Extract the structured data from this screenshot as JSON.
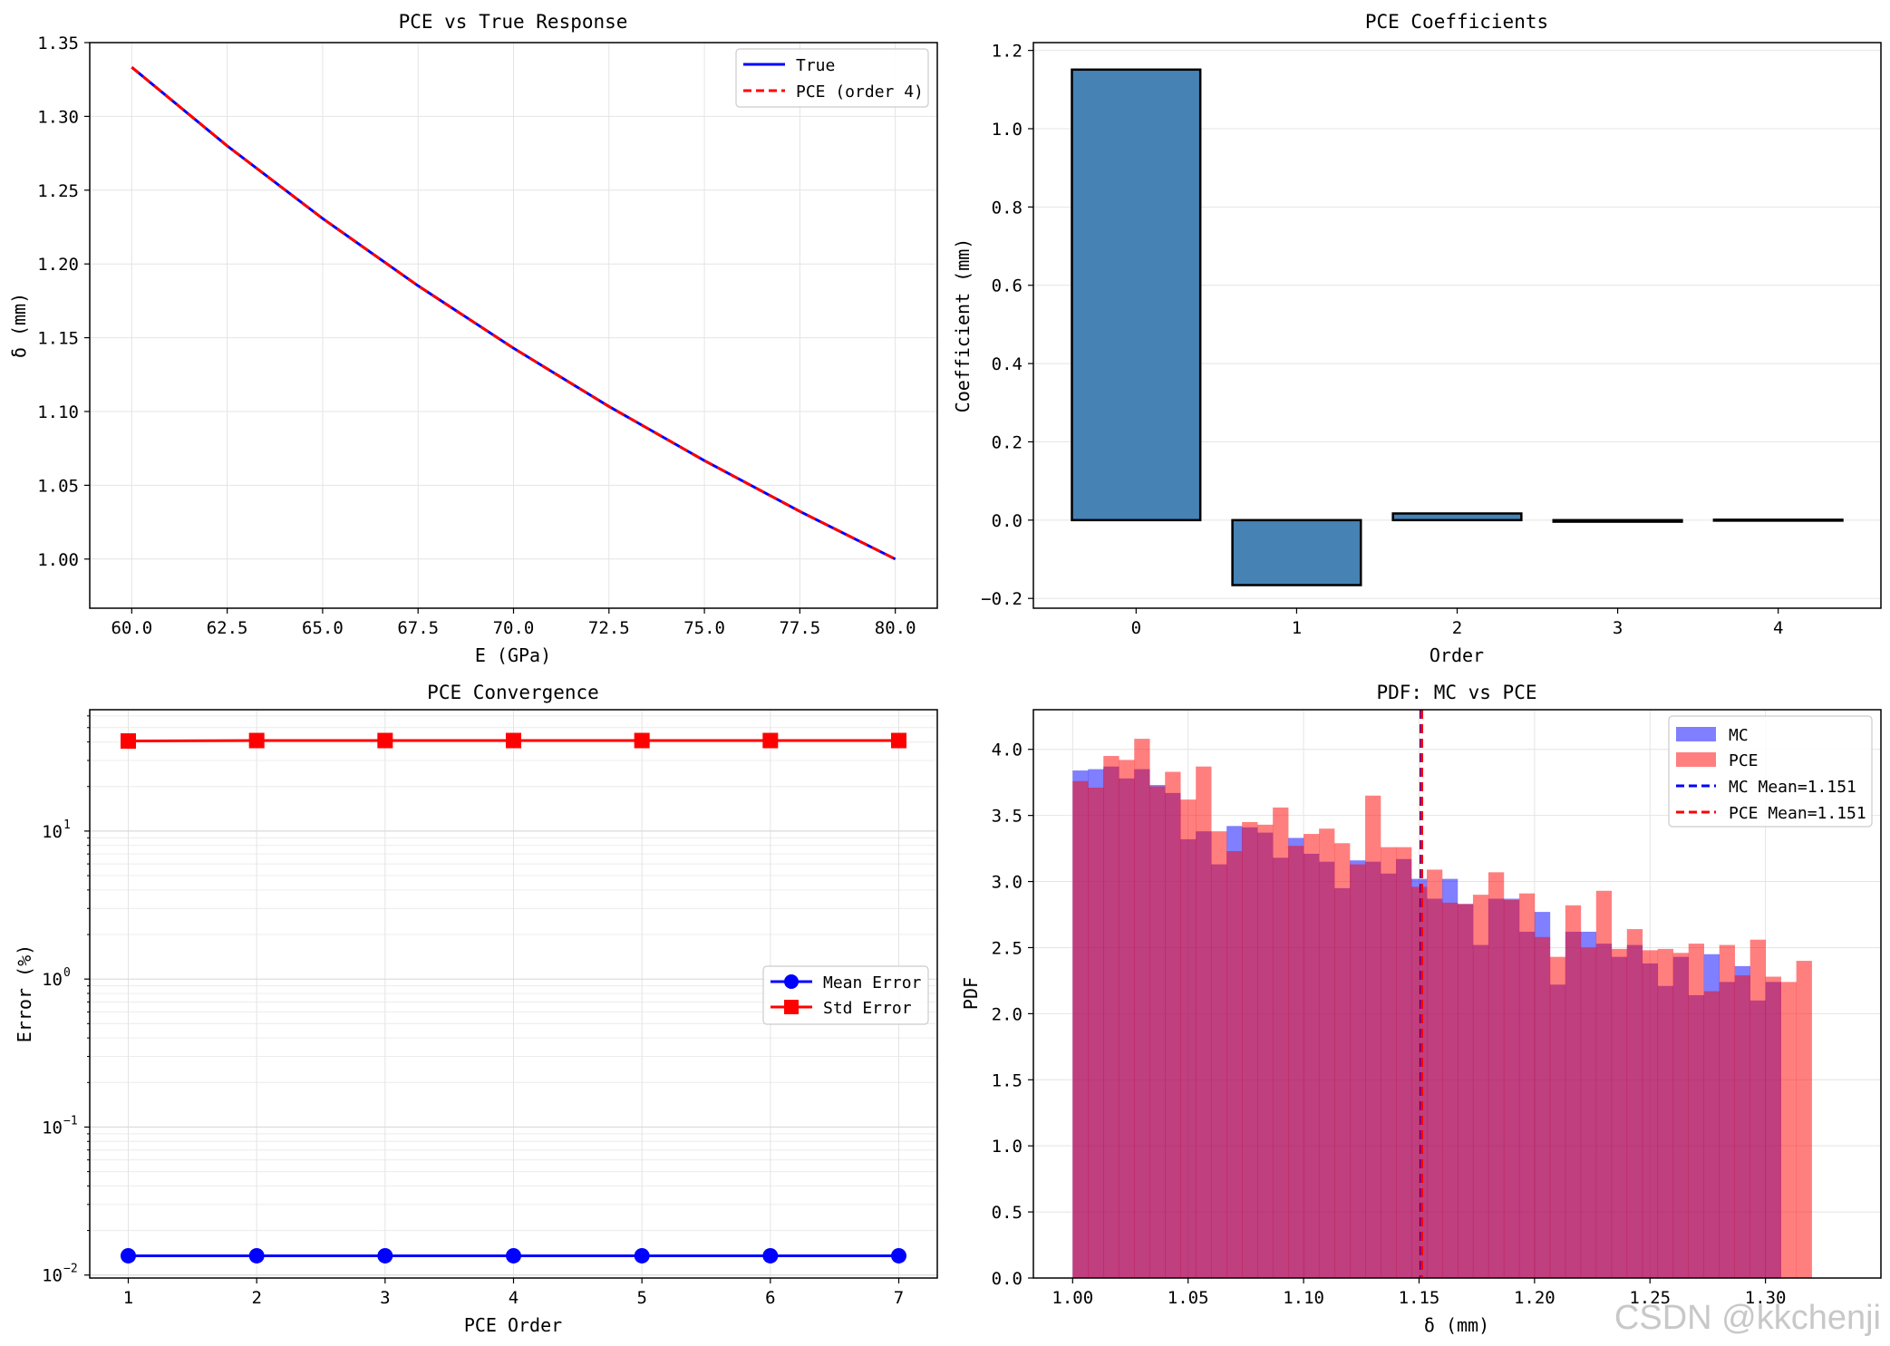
{
  "watermark": "CSDN @kkchenji",
  "chart_data": [
    {
      "id": "p1",
      "type": "line",
      "title": "PCE vs True Response",
      "xlabel": "E (GPa)",
      "ylabel": "δ (mm)",
      "xlim": [
        58.9,
        81.1
      ],
      "ylim": [
        0.9667,
        1.35
      ],
      "xticks": [
        60,
        62.5,
        65,
        67.5,
        70,
        72.5,
        75,
        77.5,
        80
      ],
      "xtick_labels": [
        "60.0",
        "62.5",
        "65.0",
        "67.5",
        "70.0",
        "72.5",
        "75.0",
        "77.5",
        "80.0"
      ],
      "yticks": [
        1.0,
        1.05,
        1.1,
        1.15,
        1.2,
        1.25,
        1.3,
        1.35
      ],
      "ytick_labels": [
        "1.00",
        "1.05",
        "1.10",
        "1.15",
        "1.20",
        "1.25",
        "1.30",
        "1.35"
      ],
      "grid": true,
      "legend_position": "top-right",
      "series": [
        {
          "name": "True",
          "color": "#0000ff",
          "style": "solid",
          "x": [
            60,
            62.5,
            65,
            67.5,
            70,
            72.5,
            75,
            77.5,
            80
          ],
          "y": [
            1.3333,
            1.28,
            1.2308,
            1.1852,
            1.1429,
            1.1034,
            1.0667,
            1.0323,
            1.0
          ]
        },
        {
          "name": "PCE (order 4)",
          "color": "#ff0000",
          "style": "dashed",
          "x": [
            60,
            62.5,
            65,
            67.5,
            70,
            72.5,
            75,
            77.5,
            80
          ],
          "y": [
            1.3333,
            1.28,
            1.2308,
            1.1852,
            1.1429,
            1.1034,
            1.0667,
            1.0323,
            1.0
          ]
        }
      ]
    },
    {
      "id": "p2",
      "type": "bar",
      "title": "PCE Coefficients",
      "xlabel": "Order",
      "ylabel": "Coefficient (mm)",
      "xlim": [
        -0.64,
        4.64
      ],
      "ylim": [
        -0.225,
        1.22
      ],
      "categories": [
        "0",
        "1",
        "2",
        "3",
        "4"
      ],
      "values": [
        1.151,
        -0.166,
        0.017,
        -0.004,
        0.001
      ],
      "yticks": [
        -0.2,
        0.0,
        0.2,
        0.4,
        0.6,
        0.8,
        1.0,
        1.2
      ],
      "ytick_labels": [
        "−0.2",
        "0.0",
        "0.2",
        "0.4",
        "0.6",
        "0.8",
        "1.0",
        "1.2"
      ],
      "bar_color": "#4682b4",
      "edge_color": "#000000",
      "grid": true
    },
    {
      "id": "p3",
      "type": "line",
      "scale_y": "log",
      "title": "PCE Convergence",
      "xlabel": "PCE Order",
      "ylabel": "Error (%)",
      "xlim": [
        0.7,
        7.3
      ],
      "ylim_log10": [
        -2.02,
        1.82
      ],
      "xticks": [
        1,
        2,
        3,
        4,
        5,
        6,
        7
      ],
      "xtick_labels": [
        "1",
        "2",
        "3",
        "4",
        "5",
        "6",
        "7"
      ],
      "yticks_log10": [
        -2,
        -1,
        0,
        1
      ],
      "ytick_mantissa": "10",
      "ytick_exponents": [
        "−2",
        "−1",
        "0",
        "1"
      ],
      "grid": true,
      "legend_position": "center-right",
      "series": [
        {
          "name": "Mean Error",
          "color": "#0000ff",
          "marker": "circle",
          "x": [
            1,
            2,
            3,
            4,
            5,
            6,
            7
          ],
          "y": [
            0.0135,
            0.0135,
            0.0135,
            0.0135,
            0.0135,
            0.0135,
            0.0135
          ]
        },
        {
          "name": "Std Error",
          "color": "#ff0000",
          "marker": "square",
          "x": [
            1,
            2,
            3,
            4,
            5,
            6,
            7
          ],
          "y": [
            40.6,
            40.9,
            40.9,
            40.9,
            40.9,
            40.9,
            40.9
          ]
        }
      ]
    },
    {
      "id": "p4",
      "type": "histogram",
      "title": "PDF: MC vs PCE",
      "xlabel": "δ (mm)",
      "ylabel": "PDF",
      "xlim": [
        0.983,
        1.35
      ],
      "ylim": [
        0,
        4.3
      ],
      "xticks": [
        1.0,
        1.05,
        1.1,
        1.15,
        1.2,
        1.25,
        1.3
      ],
      "xtick_labels": [
        "1.00",
        "1.05",
        "1.10",
        "1.15",
        "1.20",
        "1.25",
        "1.30"
      ],
      "yticks": [
        0,
        0.5,
        1.0,
        1.5,
        2.0,
        2.5,
        3.0,
        3.5,
        4.0
      ],
      "ytick_labels": [
        "0.0",
        "0.5",
        "1.0",
        "1.5",
        "2.0",
        "2.5",
        "3.0",
        "3.5",
        "4.0"
      ],
      "grid": true,
      "legend_position": "top-right",
      "bin_start": 1.0,
      "bin_width": 0.006667,
      "series": [
        {
          "name": "MC",
          "color": "#0000ff",
          "alpha": 0.5,
          "values": [
            3.84,
            3.85,
            3.87,
            3.78,
            3.85,
            3.73,
            3.67,
            3.32,
            3.38,
            3.13,
            3.42,
            3.41,
            3.37,
            3.18,
            3.33,
            3.21,
            3.15,
            2.95,
            3.16,
            3.15,
            3.06,
            3.17,
            3.02,
            2.87,
            3.02,
            2.83,
            2.52,
            2.87,
            2.87,
            2.62,
            2.77,
            2.22,
            2.62,
            2.62,
            2.53,
            2.43,
            2.52,
            2.38,
            2.21,
            2.43,
            2.14,
            2.45,
            2.24,
            2.36,
            2.1,
            2.24
          ]
        },
        {
          "name": "PCE",
          "color": "#ff0000",
          "alpha": 0.5,
          "values": [
            3.76,
            3.71,
            3.95,
            3.92,
            4.08,
            3.72,
            3.83,
            3.62,
            3.87,
            3.38,
            3.23,
            3.45,
            3.43,
            3.56,
            3.27,
            3.36,
            3.4,
            3.29,
            3.13,
            3.65,
            3.26,
            3.26,
            2.96,
            3.09,
            2.84,
            2.83,
            2.9,
            3.07,
            2.86,
            2.91,
            2.58,
            2.43,
            2.82,
            2.5,
            2.93,
            2.49,
            2.64,
            2.48,
            2.49,
            2.46,
            2.53,
            2.17,
            2.52,
            2.29,
            2.56,
            2.28,
            2.24,
            2.4
          ]
        }
      ],
      "vlines": [
        {
          "name": "MC Mean=1.151",
          "x": 1.151,
          "color": "#0000ff",
          "style": "dashed"
        },
        {
          "name": "PCE Mean=1.151",
          "x": 1.151,
          "color": "#ff0000",
          "style": "dashed"
        }
      ]
    }
  ]
}
